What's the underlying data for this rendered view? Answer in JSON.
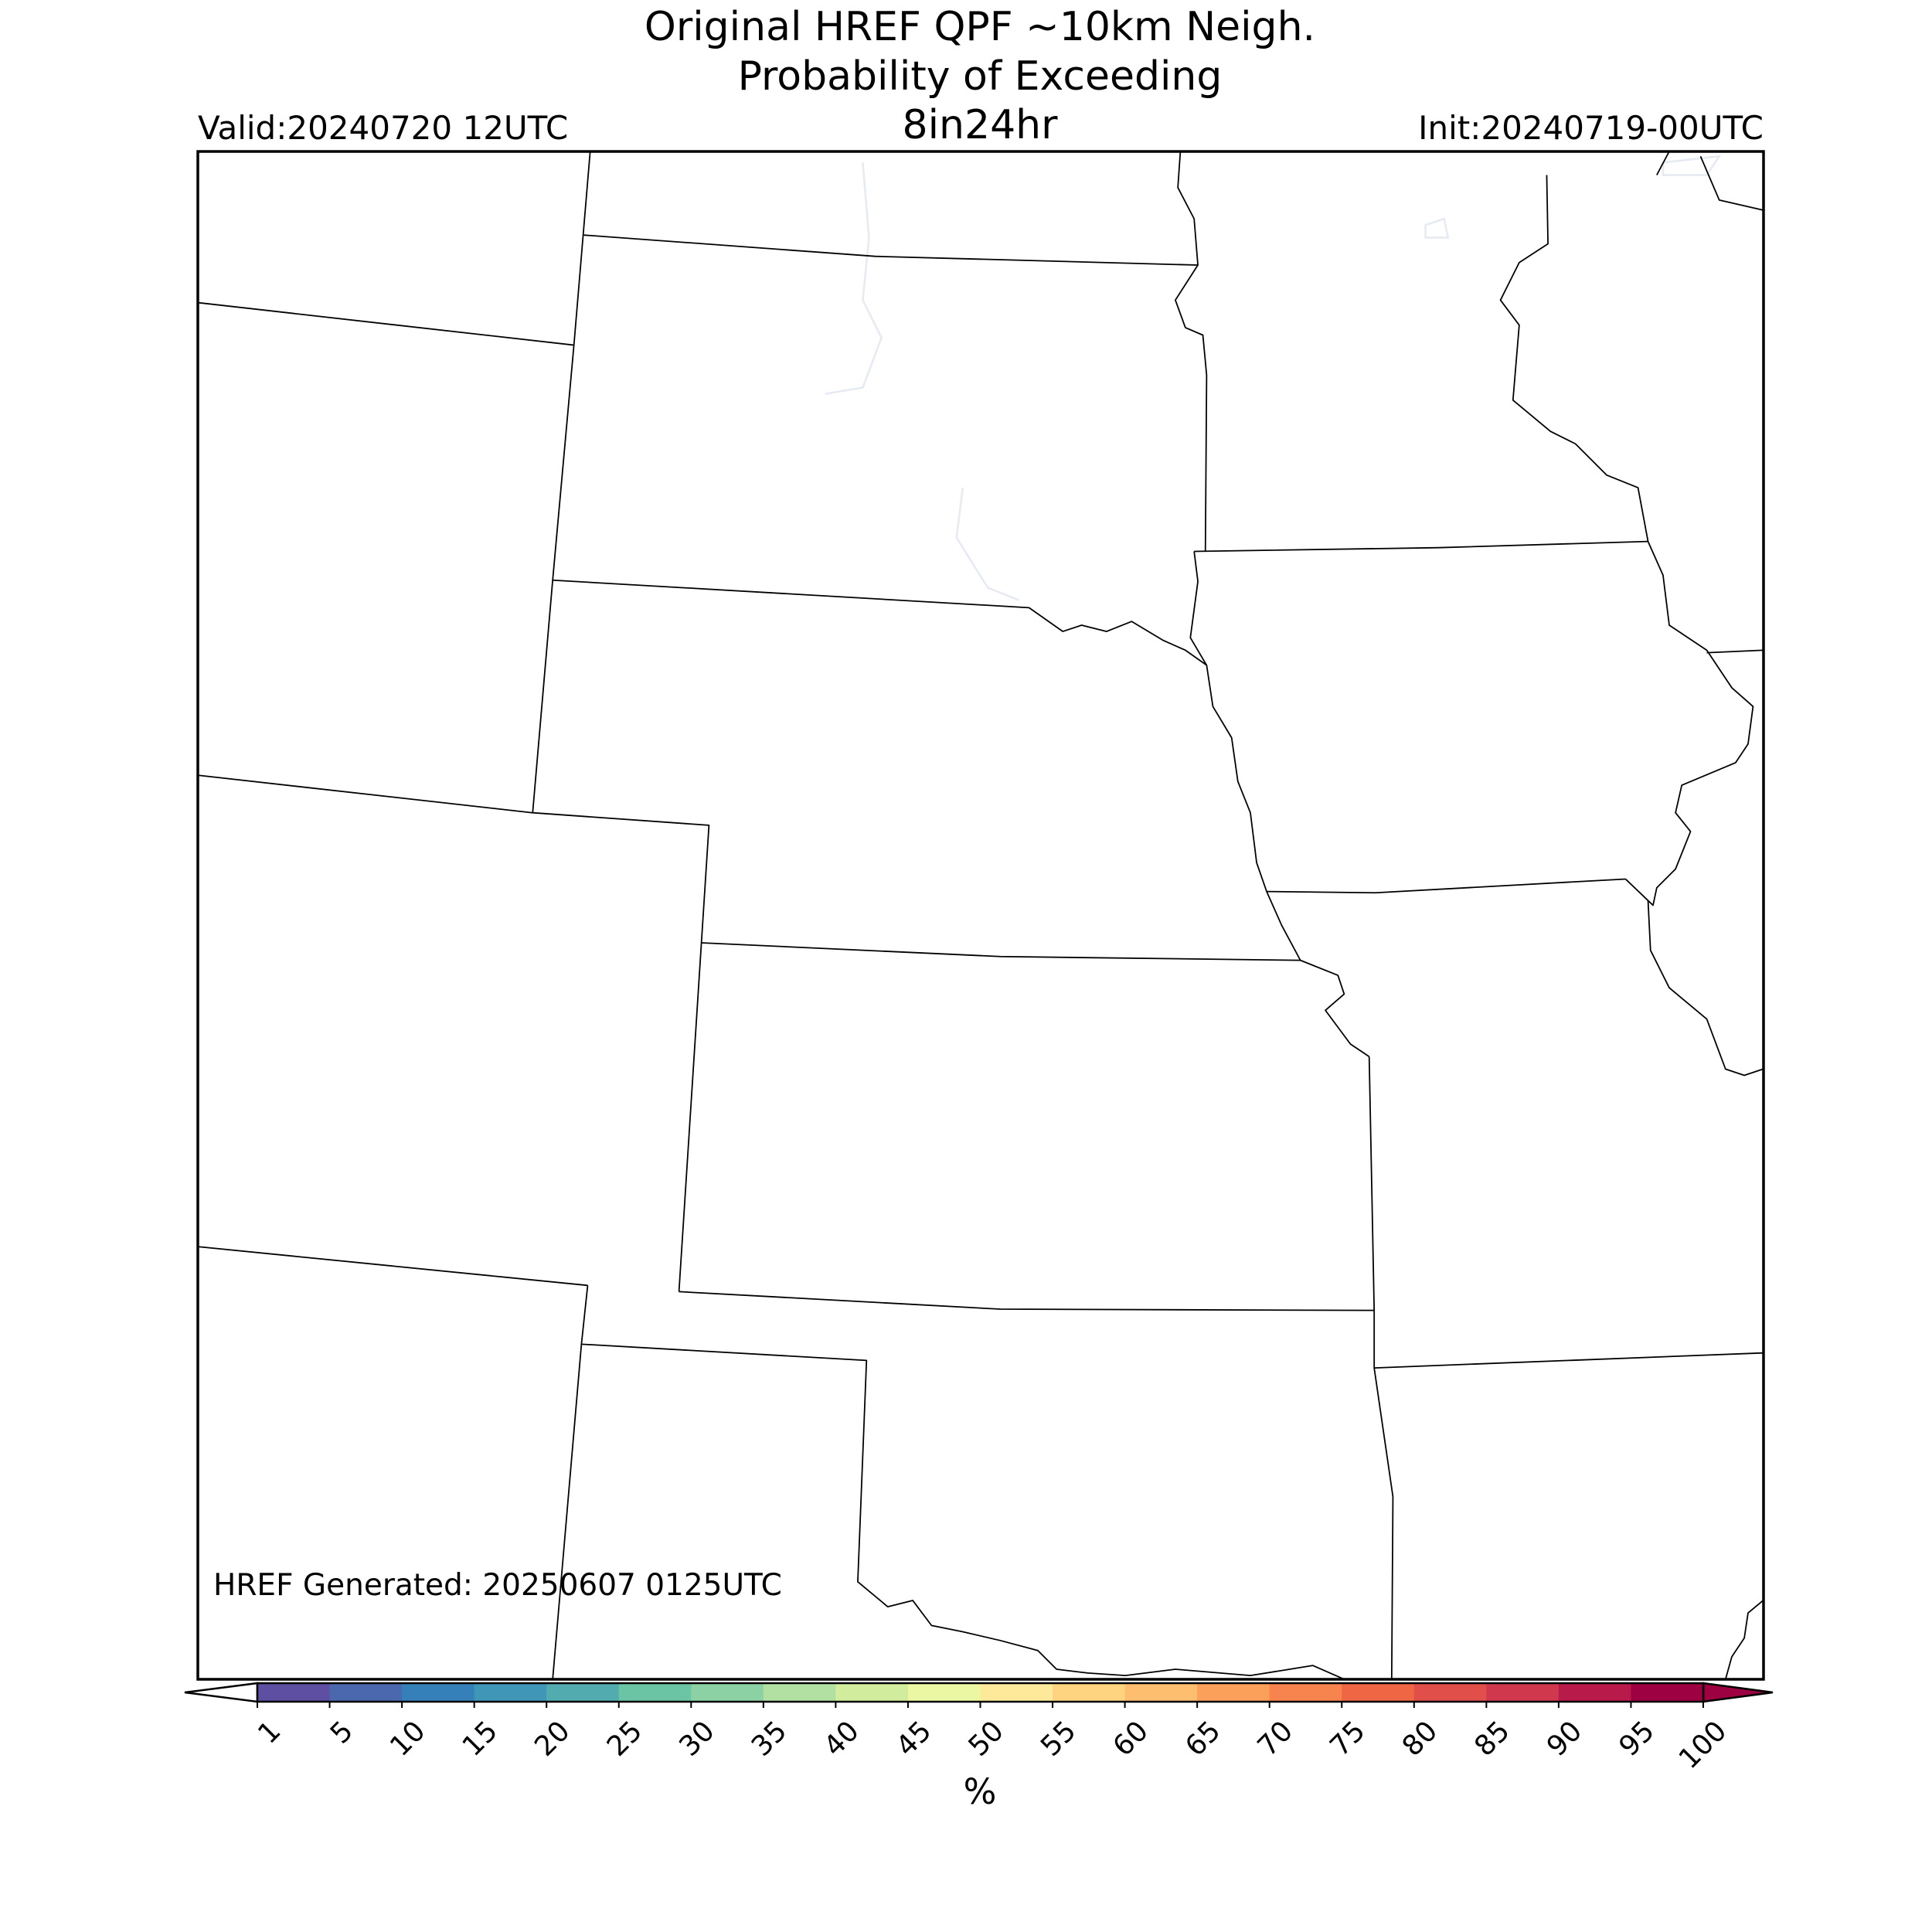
{
  "header": {
    "title_lines": [
      "Original HREF QPF ~10km Neigh.",
      "Probability of Exceeding",
      "8in24hr"
    ],
    "valid": "Valid:20240720 12UTC",
    "init": "Init:20240719-00UTC"
  },
  "footnote": "HREF Generated: 20250607 0125UTC",
  "colorbar": {
    "label": "%",
    "ticks": [
      1,
      5,
      10,
      15,
      20,
      25,
      30,
      35,
      40,
      45,
      50,
      55,
      60,
      65,
      70,
      75,
      80,
      85,
      90,
      95,
      100
    ],
    "colors": [
      "#5e4fa2",
      "#4b67ad",
      "#3680b9",
      "#3f96b7",
      "#52abae",
      "#6bc4a4",
      "#8cd1a4",
      "#b2e0a2",
      "#d0ec9c",
      "#ebf7a3",
      "#fee99a",
      "#fed481",
      "#fdbe6f",
      "#fba05b",
      "#f7844e",
      "#ef6645",
      "#e04f4a",
      "#cf384d",
      "#b81b4a",
      "#9e0142"
    ],
    "extend_min_color": "#ffffff",
    "extend_max_color": "#9e0142"
  }
}
